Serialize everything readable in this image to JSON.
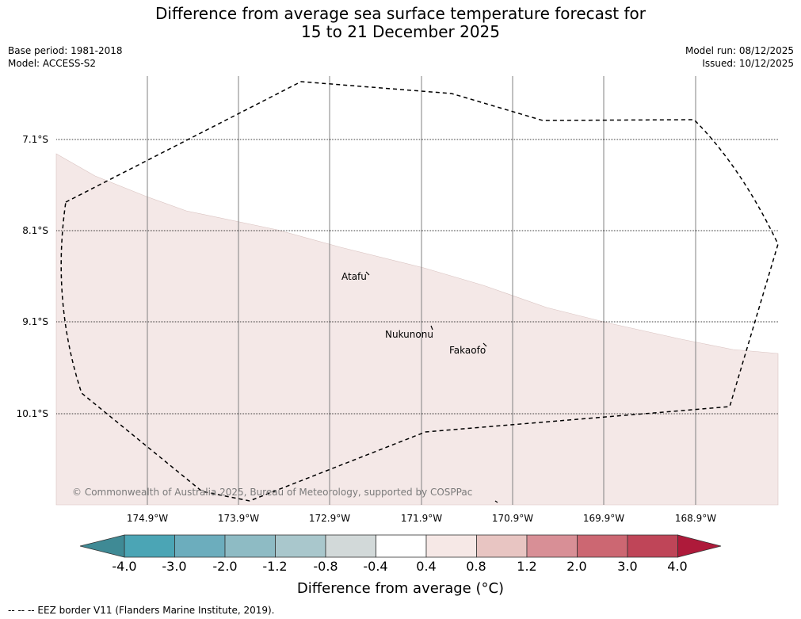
{
  "header": {
    "title_line1": "Difference from average sea surface temperature forecast for",
    "title_line2": "15 to 21 December 2025",
    "base_period": "Base period: 1981-2018",
    "model": "Model: ACCESS-S2",
    "model_run": "Model run: 08/12/2025",
    "issued": "Issued: 10/12/2025"
  },
  "map": {
    "latitude_labels": [
      "7.1°S",
      "8.1°S",
      "9.1°S",
      "10.1°S"
    ],
    "longitude_labels": [
      "174.9°W",
      "173.9°W",
      "172.9°W",
      "171.9°W",
      "170.9°W",
      "169.9°W",
      "168.9°W"
    ],
    "places": [
      {
        "name": "Atafu"
      },
      {
        "name": "Nukunonu"
      },
      {
        "name": "Fakaofo"
      }
    ],
    "copyright": "© Commonwealth of Australia 2025, Bureau of Meteorology, supported by COSPPac",
    "colors": {
      "anomaly_fill": "#f4e8e7",
      "eez_line": "#000000",
      "gridline": "#808080"
    }
  },
  "colorbar": {
    "ticks": [
      "-4.0",
      "-3.0",
      "-2.0",
      "-1.2",
      "-0.8",
      "-0.4",
      "0.4",
      "0.8",
      "1.2",
      "2.0",
      "3.0",
      "4.0"
    ],
    "colors": [
      "#4ba5b5",
      "#6cadbd",
      "#8ebbc4",
      "#a9c7cc",
      "#d2d9d9",
      "#ffffff",
      "#f6e8e6",
      "#e8c5c2",
      "#d88f96",
      "#cc6772",
      "#bf4558"
    ],
    "under_color": "#3f8a95",
    "over_color": "#ae1a3a",
    "title": "Difference from average (°C)"
  },
  "footer": {
    "legend_text": "--  --  -- EEZ border V11 (Flanders Marine Institute, 2019)."
  }
}
